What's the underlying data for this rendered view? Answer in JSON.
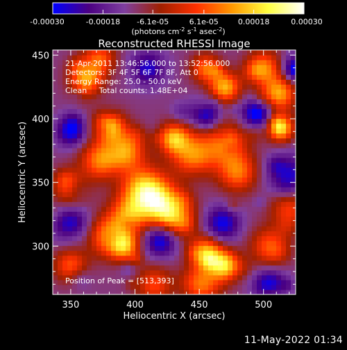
{
  "chart_data": {
    "type": "heatmap",
    "title": "Reconstructed RHESSI Image",
    "xlabel": "Heliocentric X (arcsec)",
    "ylabel": "Heliocentric Y (arcsec)",
    "xlim": [
      336,
      525
    ],
    "ylim": [
      262,
      454
    ],
    "x_ticks": [
      350,
      400,
      450,
      500
    ],
    "y_ticks": [
      300,
      350,
      400,
      450
    ],
    "colorbar": {
      "range": [
        -0.0003,
        0.0003
      ],
      "tick_values": [
        -0.0003,
        -0.00018,
        -6.1e-05,
        6.1e-05,
        0.00018,
        0.0003
      ],
      "tick_labels": [
        "-0.00030",
        "-0.00018",
        "-6.1e-05",
        "6.1e-05",
        "0.00018",
        "0.00030"
      ],
      "label_line1": "(photons cm",
      "label_sup1": "-2",
      "label_mid1": " s",
      "label_sup2": "-1",
      "label_mid2": " asec",
      "label_sup3": "-2",
      "label_end": ")",
      "colors": [
        "#0000ff",
        "#4b0082",
        "#7f3f9f",
        "#a02000",
        "#ff3000",
        "#ff9900",
        "#ffff40",
        "#ffffff"
      ]
    },
    "info_lines": [
      "21-Apr-2011 13:46:56.000 to 13:52:56.000",
      "Detectors: 3F 4F 5F 6F 7F 8F, Att 0",
      "Energy Range: 25.0 - 50.0 keV",
      "Clean     Total counts: 1.48E+04"
    ],
    "peak_label": "Position of Peak = [513,393]",
    "peak": [
      513,
      393
    ],
    "hot_spots": [
      {
        "x": 362,
        "y": 432,
        "v": 0.00024
      },
      {
        "x": 372,
        "y": 448,
        "v": 0.00018
      },
      {
        "x": 455,
        "y": 440,
        "v": 0.0002
      },
      {
        "x": 470,
        "y": 425,
        "v": 0.00026
      },
      {
        "x": 500,
        "y": 440,
        "v": 0.00022
      },
      {
        "x": 512,
        "y": 420,
        "v": 0.00025
      },
      {
        "x": 513,
        "y": 393,
        "v": 0.0003
      },
      {
        "x": 380,
        "y": 395,
        "v": 0.00026
      },
      {
        "x": 392,
        "y": 375,
        "v": 0.00024
      },
      {
        "x": 372,
        "y": 368,
        "v": 0.0002
      },
      {
        "x": 430,
        "y": 385,
        "v": 0.00025
      },
      {
        "x": 445,
        "y": 372,
        "v": 0.00022
      },
      {
        "x": 470,
        "y": 380,
        "v": 0.00018
      },
      {
        "x": 480,
        "y": 358,
        "v": 0.0002
      },
      {
        "x": 407,
        "y": 345,
        "v": 0.00028
      },
      {
        "x": 420,
        "y": 333,
        "v": 0.00025
      },
      {
        "x": 395,
        "y": 325,
        "v": 0.0002
      },
      {
        "x": 380,
        "y": 308,
        "v": 0.00024
      },
      {
        "x": 392,
        "y": 300,
        "v": 0.00022
      },
      {
        "x": 350,
        "y": 345,
        "v": 0.00016
      },
      {
        "x": 432,
        "y": 322,
        "v": 0.00018
      },
      {
        "x": 455,
        "y": 295,
        "v": 0.00026
      },
      {
        "x": 470,
        "y": 285,
        "v": 0.00028
      },
      {
        "x": 452,
        "y": 270,
        "v": 0.0002
      },
      {
        "x": 350,
        "y": 285,
        "v": 0.00018
      },
      {
        "x": 415,
        "y": 270,
        "v": 0.00016
      },
      {
        "x": 505,
        "y": 300,
        "v": 0.00018
      },
      {
        "x": 520,
        "y": 330,
        "v": 0.00016
      }
    ],
    "cold_spots": [
      {
        "x": 495,
        "y": 405,
        "v": -0.00022
      },
      {
        "x": 525,
        "y": 440,
        "v": -0.00018
      },
      {
        "x": 455,
        "y": 405,
        "v": -0.0002
      },
      {
        "x": 410,
        "y": 440,
        "v": -0.00016
      },
      {
        "x": 350,
        "y": 390,
        "v": -0.00018
      },
      {
        "x": 420,
        "y": 305,
        "v": -0.0002
      },
      {
        "x": 350,
        "y": 318,
        "v": -0.00016
      },
      {
        "x": 468,
        "y": 318,
        "v": -0.00018
      },
      {
        "x": 520,
        "y": 355,
        "v": -0.00016
      },
      {
        "x": 505,
        "y": 270,
        "v": -0.00018
      }
    ]
  },
  "footer": {
    "timestamp": "11-May-2022 01:34"
  }
}
